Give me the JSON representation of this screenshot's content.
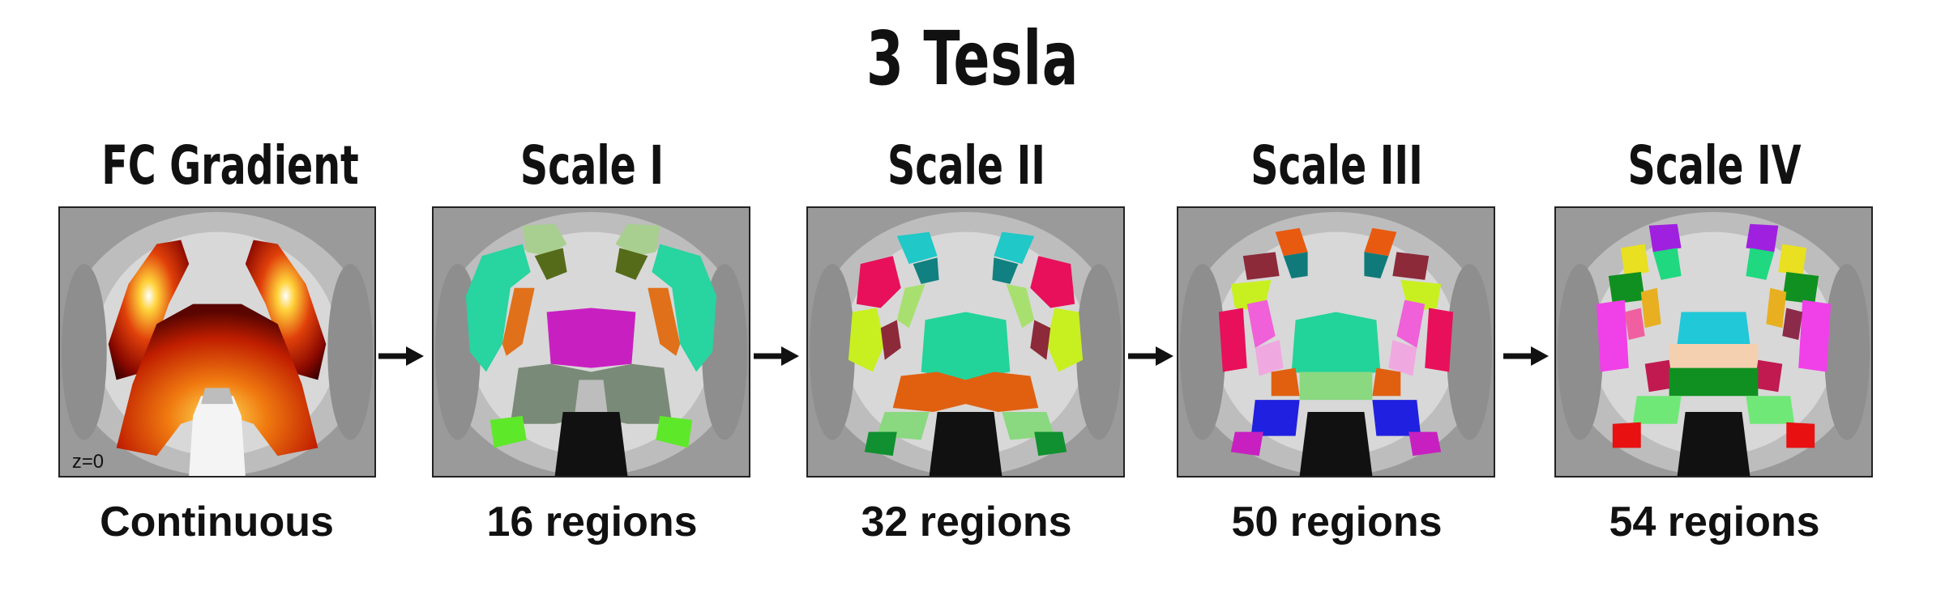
{
  "title": "3 Tesla",
  "panels": [
    {
      "heading": "FC Gradient",
      "caption": "Continuous",
      "slice_label": "z=0"
    },
    {
      "heading": "Scale I",
      "caption": "16 regions"
    },
    {
      "heading": "Scale II",
      "caption": "32 regions"
    },
    {
      "heading": "Scale III",
      "caption": "50 regions"
    },
    {
      "heading": "Scale IV",
      "caption": "54 regions"
    }
  ],
  "colors": {
    "background_gray": "#9a9a9a",
    "white_matter": "#d8d8d8",
    "arrow": "#111111"
  }
}
